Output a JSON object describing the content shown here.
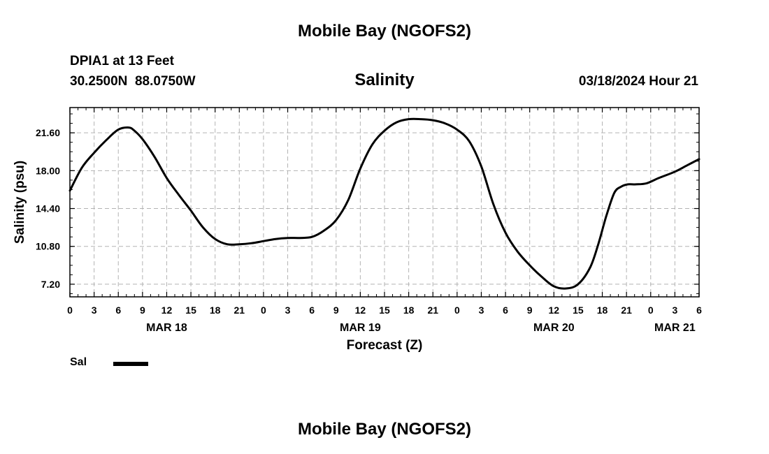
{
  "header": {
    "title": "Mobile Bay (NGOFS2)",
    "station": "DPIA1 at 13 Feet",
    "coords": "30.2500N  88.0750W",
    "timestamp": "03/18/2024 Hour 21",
    "footer_title": "Mobile Bay (NGOFS2)"
  },
  "chart_data": {
    "type": "line",
    "title": "Salinity",
    "xlabel": "Forecast (Z)",
    "ylabel": "Salinity (psu)",
    "xlim": [
      0,
      78
    ],
    "ylim": [
      6.0,
      24.0
    ],
    "grid": true,
    "legend_position": "bottom-left",
    "y_ticks": [
      "21.60",
      "18.00",
      "14.40",
      "10.80",
      "7.20"
    ],
    "x_ticks": [
      "0",
      "3",
      "6",
      "9",
      "12",
      "15",
      "18",
      "21",
      "0",
      "3",
      "6",
      "9",
      "12",
      "15",
      "18",
      "21",
      "0",
      "3",
      "6",
      "9",
      "12",
      "15",
      "18",
      "21",
      "0",
      "3",
      "6"
    ],
    "date_labels": [
      {
        "label": "MAR 18",
        "x": 12
      },
      {
        "label": "MAR 19",
        "x": 36
      },
      {
        "label": "MAR 20",
        "x": 60
      },
      {
        "label": "MAR 21",
        "x": 75
      }
    ],
    "series": [
      {
        "name": "Sal",
        "color": "#000000",
        "x": [
          0,
          1.5,
          3,
          4.5,
          6,
          7.3,
          8,
          9,
          10.5,
          12,
          13.5,
          15,
          16.5,
          18,
          19.5,
          21,
          22.5,
          24,
          25.5,
          27,
          28.5,
          30,
          31.5,
          33,
          34.5,
          36,
          37.5,
          39,
          40.5,
          42,
          43.5,
          45,
          46.5,
          48,
          49.5,
          51,
          52.5,
          54,
          55.5,
          57,
          58.5,
          60,
          61.5,
          63,
          64.5,
          65.5,
          66.5,
          67.5,
          68.4,
          69.2,
          70.2,
          71.5,
          73,
          75,
          76.5,
          78
        ],
        "y": [
          16.1,
          18.3,
          19.7,
          20.9,
          21.9,
          22.1,
          21.8,
          21.0,
          19.3,
          17.3,
          15.7,
          14.2,
          12.6,
          11.5,
          11.0,
          11.0,
          11.1,
          11.3,
          11.5,
          11.6,
          11.6,
          11.7,
          12.3,
          13.3,
          15.2,
          18.2,
          20.5,
          21.8,
          22.6,
          22.9,
          22.9,
          22.8,
          22.5,
          21.9,
          20.8,
          18.4,
          14.8,
          12.1,
          10.3,
          9.0,
          7.9,
          7.0,
          6.8,
          7.2,
          8.8,
          11.0,
          13.7,
          15.9,
          16.5,
          16.7,
          16.7,
          16.8,
          17.3,
          17.9,
          18.5,
          19.1
        ]
      }
    ]
  }
}
